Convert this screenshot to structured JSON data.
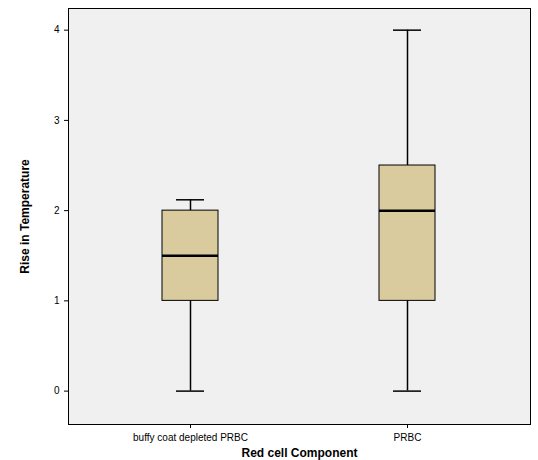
{
  "chart_data": {
    "type": "box",
    "x_label": "Red cell Component",
    "y_label": "Rise in Temperature",
    "categories": [
      "buffy coat depleted PRBC",
      "PRBC"
    ],
    "min": [
      0,
      0
    ],
    "q1": [
      1,
      1
    ],
    "median": [
      1.5,
      2
    ],
    "q3": [
      2,
      2.5
    ],
    "max": [
      2.12,
      4
    ],
    "color": "#d9cb9e",
    "ylim": [
      -0.37,
      4.24
    ],
    "yticks": [
      0,
      1,
      2,
      3,
      4
    ]
  }
}
